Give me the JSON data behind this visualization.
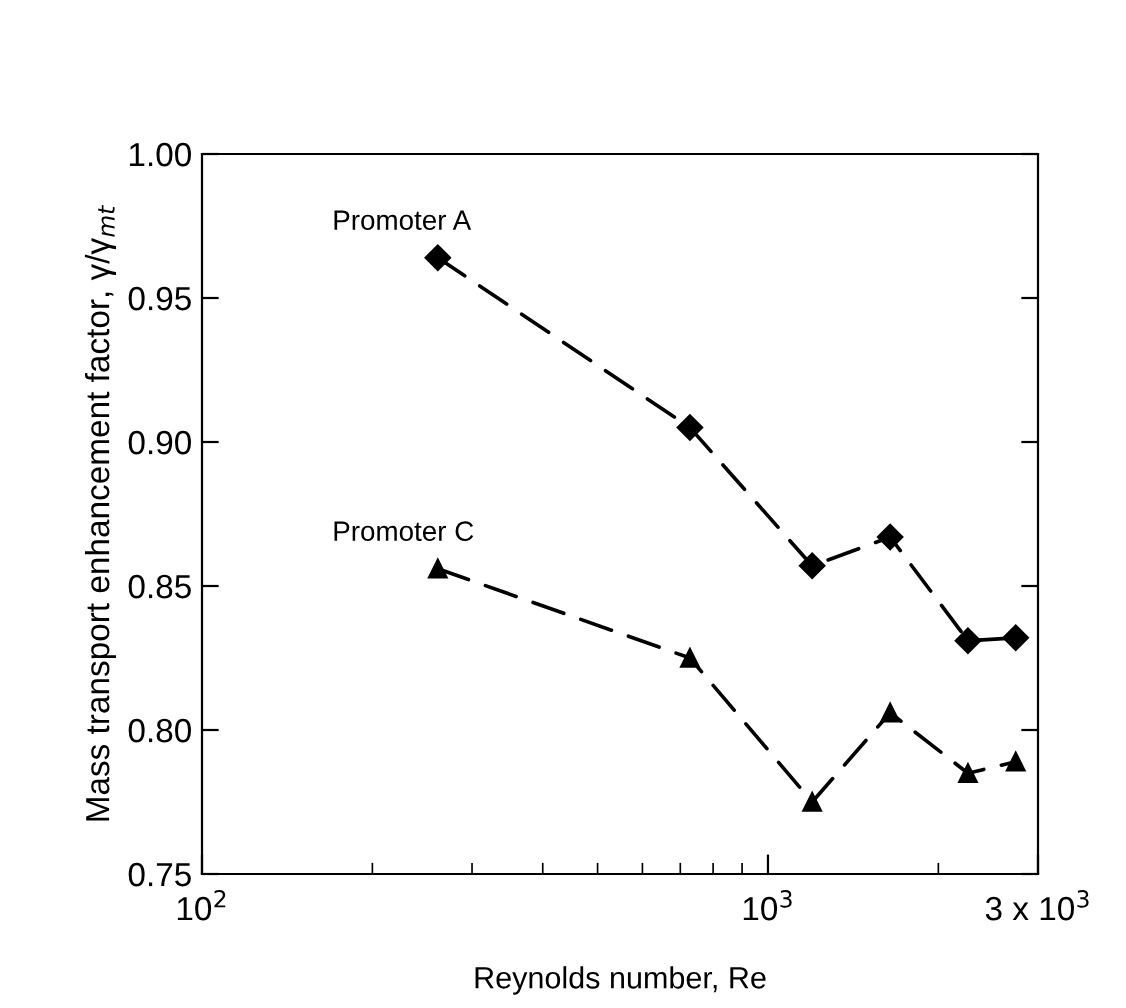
{
  "chart_data": {
    "type": "line",
    "xlabel": "Reynolds number, Re",
    "ylabel": "Mass transport enhancement factor, γ/γ$_{mt}$",
    "log": "x",
    "xlim": [
      100,
      3000
    ],
    "xticks": [
      {
        "value": 100,
        "label": "10$^{2}$"
      },
      {
        "value": 1000,
        "label": "10$^{3}$"
      },
      {
        "value": 3000,
        "label": "3 x 10$^{3}$"
      }
    ],
    "ylim": [
      0.75,
      1.0
    ],
    "yticks": [
      {
        "value": 0.75,
        "label": "0.75"
      },
      {
        "value": 0.8,
        "label": "0.80"
      },
      {
        "value": 0.85,
        "label": "0.85"
      },
      {
        "value": 0.9,
        "label": "0.90"
      },
      {
        "value": 0.95,
        "label": "0.95"
      },
      {
        "value": 1.0,
        "label": "1.00"
      }
    ],
    "grid": false,
    "legend": false,
    "line_style": "dashed",
    "x": [
      261,
      728,
      1197,
      1644,
      2256,
      2740
    ],
    "series": [
      {
        "name": "Promoter A",
        "color": "#000000",
        "marker": "diamond",
        "values": [
          0.964,
          0.905,
          0.857,
          0.867,
          0.831,
          0.832
        ]
      },
      {
        "name": "Promoter C",
        "color": "#000000",
        "marker": "triangle",
        "values": [
          0.856,
          0.825,
          0.775,
          0.806,
          0.785,
          0.789
        ]
      }
    ]
  }
}
